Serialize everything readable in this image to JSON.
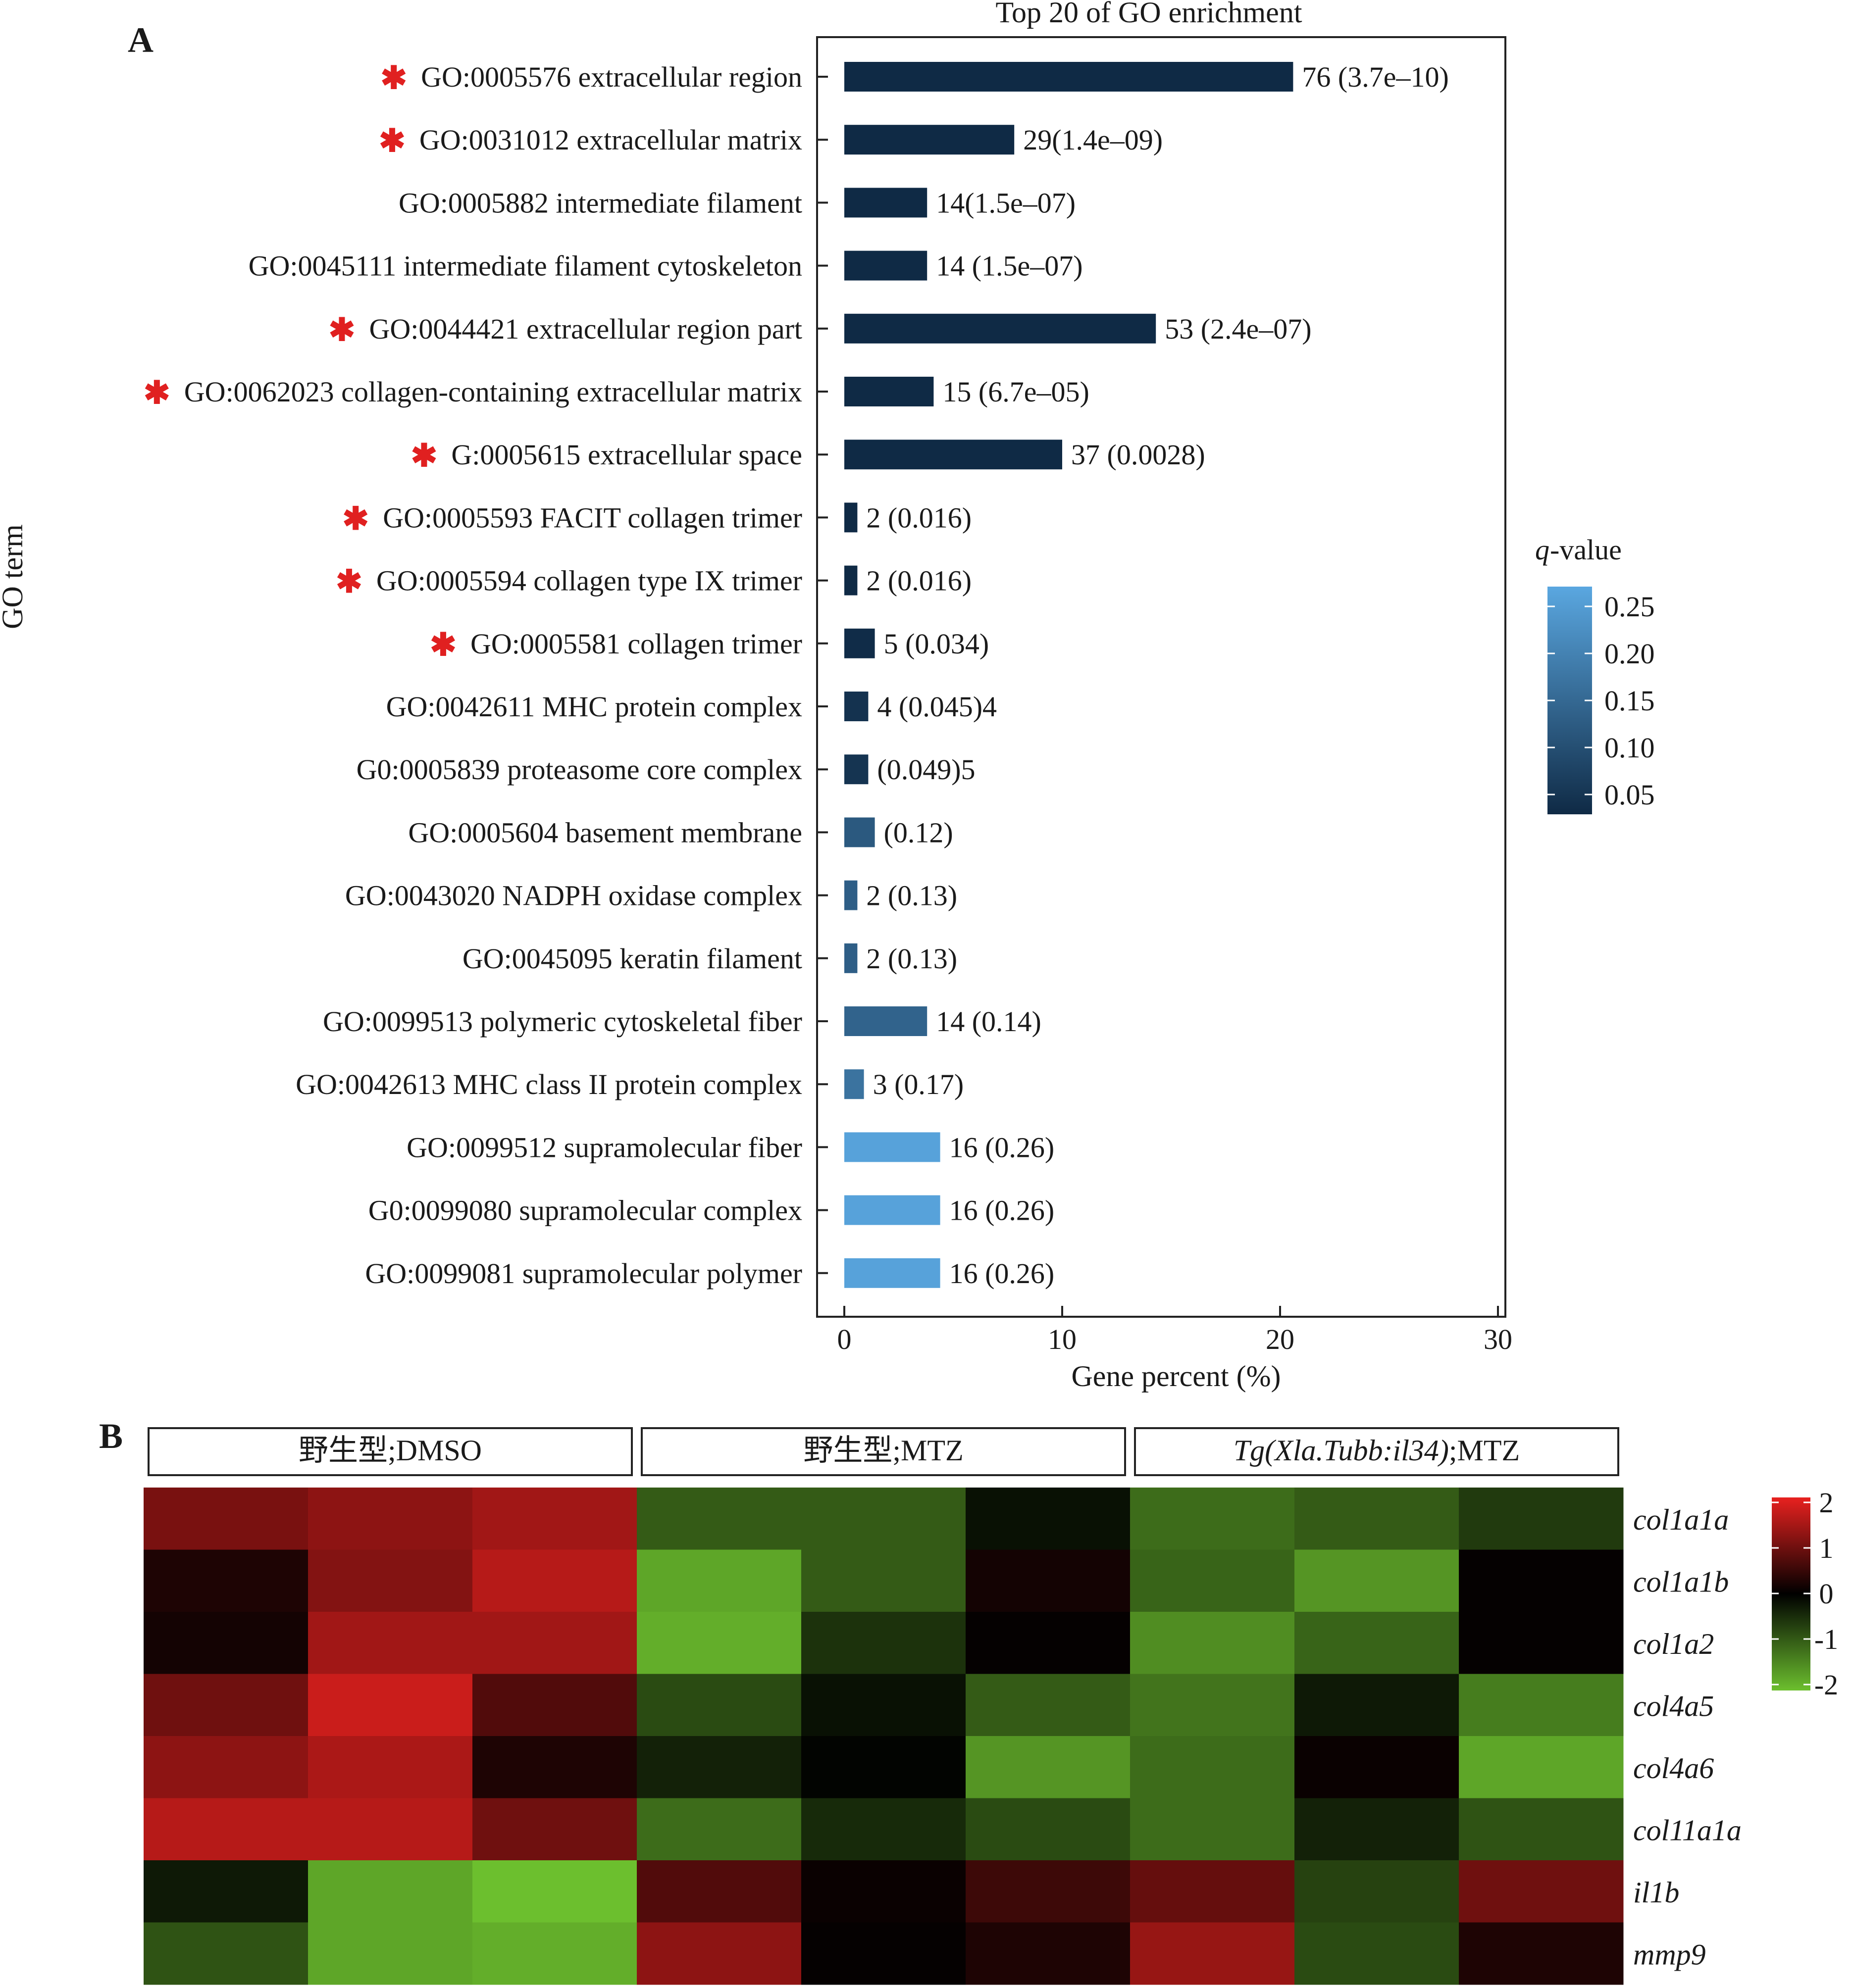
{
  "panel_a_letter": "A",
  "panel_b_letter": "B",
  "chart_data": [
    {
      "type": "bar",
      "orientation": "horizontal",
      "title": "Top 20 of GO enrichment",
      "xlabel": "Gene percent (%)",
      "ylabel": "GO term",
      "xlim": [
        0,
        30
      ],
      "xticks": [
        0,
        10,
        20,
        30
      ],
      "categories": [
        "GO:0005576 extracellular region",
        "GO:0031012 extracellular matrix",
        "GO:0005882 intermediate filament",
        "GO:0045111 intermediate filament cytoskeleton",
        "GO:0044421 extracellular region part",
        "GO:0062023 collagen-containing extracellular matrix",
        "G:0005615 extracellular space",
        "GO:0005593 FACIT collagen trimer",
        "GO:0005594 collagen type IX trimer",
        "GO:0005581 collagen trimer",
        "GO:0042611 MHC protein complex",
        "G0:0005839 proteasome core complex",
        "GO:0005604 basement membrane",
        "GO:0043020 NADPH oxidase complex",
        "GO:0045095 keratin filament",
        "GO:0099513 polymeric cytoskeletal fiber",
        "GO:0042613 MHC class II protein complex",
        "GO:0099512 supramolecular fiber",
        "G0:0099080 supramolecular complex",
        "GO:0099081 supramolecular polymer"
      ],
      "values": [
        20.6,
        7.8,
        3.8,
        3.8,
        14.3,
        4.1,
        10.0,
        0.6,
        0.6,
        1.4,
        1.1,
        1.1,
        1.4,
        0.6,
        0.6,
        3.8,
        0.9,
        4.4,
        4.4,
        4.4
      ],
      "q_values": [
        3.7e-10,
        1.4e-09,
        1.5e-07,
        1.5e-07,
        2.4e-07,
        6.7e-05,
        0.0028,
        0.016,
        0.016,
        0.034,
        0.045,
        0.049,
        0.12,
        0.13,
        0.13,
        0.14,
        0.17,
        0.26,
        0.26,
        0.26
      ],
      "significant": [
        true,
        true,
        false,
        false,
        true,
        true,
        true,
        true,
        true,
        true,
        false,
        false,
        false,
        false,
        false,
        false,
        false,
        false,
        false,
        false
      ],
      "data_labels": [
        "76 (3.7e–10)",
        "29(1.4e–09)",
        "14(1.5e–07)",
        "14 (1.5e–07)",
        "53 (2.4e–07)",
        "15 (6.7e–05)",
        "37 (0.0028)",
        "2 (0.016)",
        "2 (0.016)",
        "5 (0.034)",
        "4 (0.045)4",
        "(0.049)5",
        "(0.12)",
        "2 (0.13)",
        "2 (0.13)",
        "14 (0.14)",
        "3 (0.17)",
        "16 (0.26)",
        "16 (0.26)",
        "16 (0.26)"
      ],
      "star_glyph": "✱",
      "colorbar": {
        "title_italic": "q",
        "title_rest": "-value",
        "ticks": [
          "0.25",
          "0.20",
          "0.15",
          "0.10",
          "0.05"
        ],
        "low_color": "#0f2a45",
        "high_color": "#5aa7e0"
      },
      "legend_position": "right"
    },
    {
      "type": "heatmap",
      "groups": [
        {
          "label_italic": "",
          "label_rest": "野生型;DMSO",
          "columns": 3
        },
        {
          "label_italic": "",
          "label_rest": "野生型;MTZ",
          "columns": 3
        },
        {
          "label_italic": "Tg(Xla.Tubb:il34)",
          "label_rest": ";MTZ",
          "columns": 3
        }
      ],
      "rows": [
        "col1a1a",
        "col1a1b",
        "col1a2",
        "col4a5",
        "col4a6",
        "col11a1a",
        "il1b",
        "mmp9"
      ],
      "values": [
        [
          1.2,
          1.4,
          1.6,
          -1.1,
          -1.1,
          -0.2,
          -1.3,
          -1.1,
          -0.7
        ],
        [
          0.3,
          1.3,
          1.8,
          -2.0,
          -1.1,
          0.2,
          -1.2,
          -1.8,
          0.05
        ],
        [
          0.2,
          1.6,
          1.6,
          -2.1,
          -0.6,
          0.05,
          -1.7,
          -1.2,
          0.05
        ],
        [
          1.1,
          2.0,
          0.8,
          -0.9,
          -0.2,
          -1.1,
          -1.4,
          -0.3,
          -1.5
        ],
        [
          1.4,
          1.7,
          0.3,
          -0.4,
          -0.05,
          -1.8,
          -1.3,
          0.1,
          -2.0
        ],
        [
          1.8,
          1.8,
          1.1,
          -1.3,
          -0.5,
          -0.9,
          -1.3,
          -0.4,
          -1.0
        ],
        [
          -0.3,
          -2.0,
          -2.3,
          0.8,
          0.1,
          0.6,
          1.0,
          -0.8,
          1.1
        ],
        [
          -1.0,
          -2.0,
          -2.1,
          1.4,
          0.05,
          0.3,
          1.5,
          -0.9,
          0.3
        ]
      ],
      "colorbar": {
        "ticks": [
          "2",
          "1",
          "0",
          "-1",
          "-2"
        ],
        "vmin": -2.3,
        "vmax": 2.3
      },
      "colors": {
        "high": "#e8211f",
        "mid": "#000000",
        "low": "#6cbf2e"
      }
    }
  ]
}
